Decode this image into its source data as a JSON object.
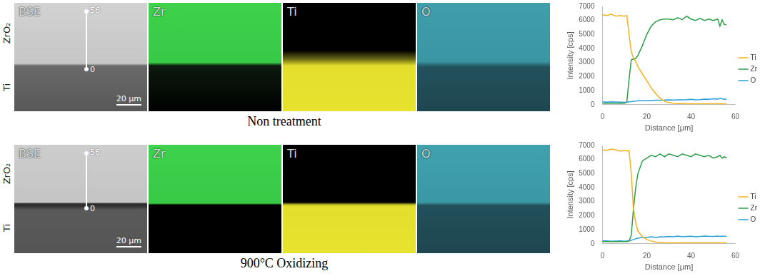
{
  "chart_data": [
    {
      "type": "line",
      "x_label": "Distance [μm]",
      "y_label": "Intensity [cps]",
      "x": [
        0,
        2,
        4,
        6,
        8,
        10,
        11,
        12,
        13,
        14,
        15,
        16,
        18,
        20,
        22,
        24,
        26,
        28,
        30,
        32,
        34,
        36,
        38,
        40,
        42,
        44,
        46,
        48,
        50,
        52,
        53,
        54,
        55,
        56
      ],
      "series": [
        {
          "name": "Ti",
          "color": "#f5b21f",
          "values": [
            6400,
            6350,
            6450,
            6300,
            6350,
            6300,
            6350,
            5000,
            3800,
            3300,
            3100,
            2700,
            2200,
            1700,
            1200,
            800,
            450,
            250,
            150,
            100,
            80,
            80,
            70,
            70,
            70,
            70,
            70,
            70,
            70,
            70,
            70,
            70,
            70,
            70
          ]
        },
        {
          "name": "Zr",
          "color": "#2f9e4a",
          "values": [
            100,
            100,
            100,
            100,
            100,
            100,
            200,
            1800,
            3200,
            3250,
            3300,
            3500,
            4200,
            5000,
            5600,
            5900,
            6050,
            6100,
            6100,
            6050,
            6200,
            6050,
            6300,
            6100,
            6000,
            6150,
            6000,
            6100,
            6000,
            6100,
            5600,
            6050,
            5700,
            5700
          ]
        },
        {
          "name": "O",
          "color": "#2a9fd8",
          "values": [
            200,
            180,
            200,
            190,
            180,
            170,
            180,
            200,
            220,
            250,
            260,
            280,
            280,
            300,
            300,
            320,
            320,
            330,
            350,
            330,
            340,
            350,
            360,
            380,
            350,
            360,
            400,
            380,
            420,
            400,
            450,
            420,
            380,
            400
          ]
        }
      ],
      "xlim": [
        0,
        60
      ],
      "xticks": [
        0,
        20,
        40,
        60
      ],
      "ylim": [
        0,
        7000
      ],
      "yticks": [
        0,
        1000,
        2000,
        3000,
        4000,
        5000,
        6000,
        7000
      ],
      "grid": false,
      "legend": "right",
      "marker": "none",
      "line_style": "solid"
    },
    {
      "type": "line",
      "x_label": "Distance [μm]",
      "y_label": "Intensity [cps]",
      "x": [
        0,
        2,
        4,
        6,
        8,
        10,
        11,
        12,
        13,
        14,
        15,
        16,
        18,
        20,
        22,
        24,
        26,
        28,
        30,
        32,
        34,
        36,
        38,
        40,
        42,
        44,
        46,
        48,
        50,
        52,
        53,
        54,
        55,
        56
      ],
      "series": [
        {
          "name": "Ti",
          "color": "#f5b21f",
          "values": [
            6700,
            6650,
            6750,
            6700,
            6600,
            6650,
            6600,
            6650,
            5000,
            2500,
            1500,
            900,
            500,
            300,
            200,
            120,
            100,
            80,
            70,
            70,
            60,
            60,
            60,
            60,
            60,
            60,
            60,
            60,
            60,
            60,
            60,
            60,
            60,
            60
          ]
        },
        {
          "name": "Zr",
          "color": "#2f9e4a",
          "values": [
            150,
            150,
            150,
            150,
            150,
            150,
            150,
            200,
            600,
            2500,
            4000,
            5000,
            5900,
            6100,
            6300,
            6200,
            6400,
            6200,
            6400,
            6300,
            6200,
            6400,
            6300,
            6200,
            6400,
            6300,
            6200,
            6300,
            6100,
            6200,
            6300,
            6100,
            6200,
            6100
          ]
        },
        {
          "name": "O",
          "color": "#2a9fd8",
          "values": [
            200,
            200,
            180,
            190,
            200,
            180,
            190,
            200,
            250,
            300,
            350,
            400,
            450,
            450,
            500,
            450,
            500,
            480,
            520,
            500,
            550,
            500,
            520,
            540,
            500,
            520,
            550,
            530,
            520,
            550,
            520,
            540,
            530,
            520
          ]
        }
      ],
      "xlim": [
        0,
        60
      ],
      "xticks": [
        0,
        20,
        40,
        60
      ],
      "ylim": [
        0,
        7000
      ],
      "yticks": [
        0,
        1000,
        2000,
        3000,
        4000,
        5000,
        6000,
        7000
      ],
      "grid": false,
      "legend": "right",
      "marker": "none",
      "line_style": "solid"
    }
  ],
  "micrographs": [
    {
      "caption": "Non treatment",
      "layers": [
        "ZrO₂",
        "Ti"
      ],
      "maps": [
        "BSE",
        "Zr",
        "Ti",
        "O"
      ],
      "scan_line": {
        "end": 56,
        "start": 0
      },
      "scale_bar": "20 μm"
    },
    {
      "caption": "900°C Oxidizing",
      "layers": [
        "ZrO₂",
        "Ti"
      ],
      "maps": [
        "BSE",
        "Zr",
        "Ti",
        "O"
      ],
      "scan_line": {
        "end": 56,
        "start": 0
      },
      "scale_bar": "20 μm"
    }
  ]
}
